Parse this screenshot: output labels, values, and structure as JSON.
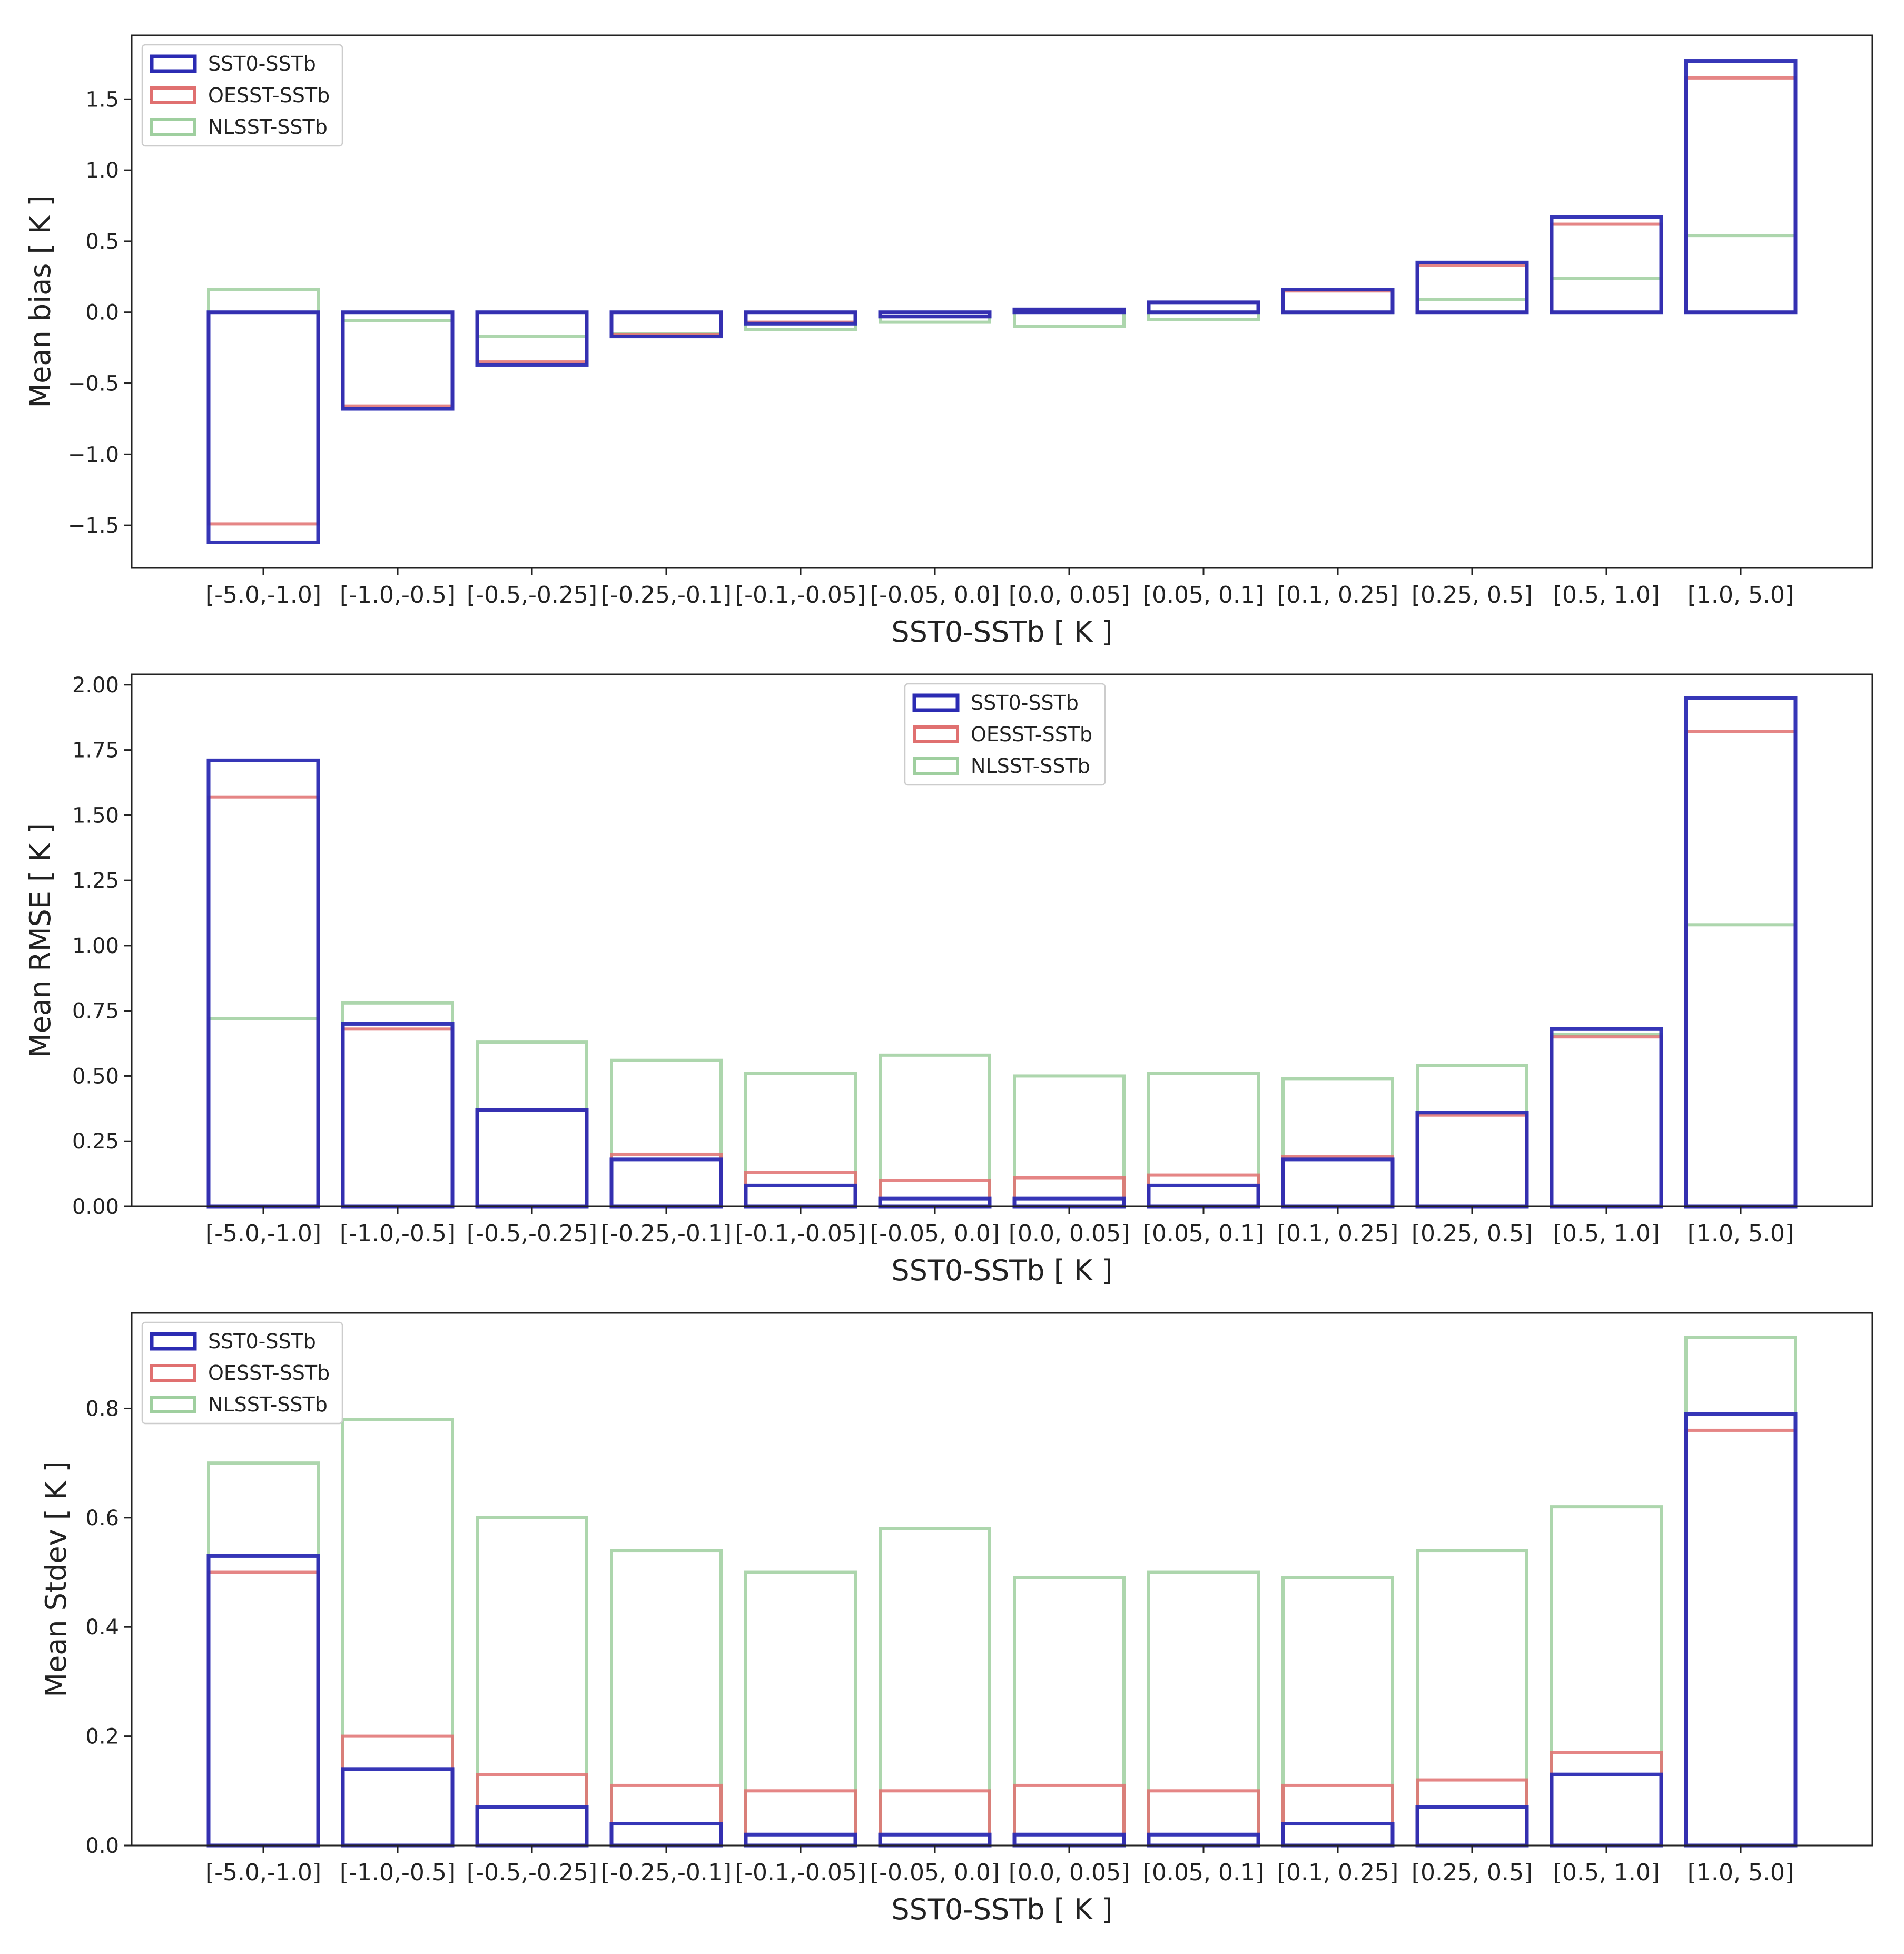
{
  "colors": {
    "SST0-SSTb": "#2b2bb3",
    "OESST-SSTb": "#e07070",
    "NLSST-SSTb": "#9fcf9f"
  },
  "chart_data": [
    {
      "type": "bar",
      "xlabel": "SST0-SSTb [ K ]",
      "ylabel": "Mean bias [ K ]",
      "ylim": [
        -1.8,
        1.95
      ],
      "yticks": [
        -1.5,
        -1.0,
        -0.5,
        0.0,
        0.5,
        1.0,
        1.5
      ],
      "ytick_labels": [
        "−1.5",
        "−1.0",
        "−0.5",
        "0.0",
        "0.5",
        "1.0",
        "1.5"
      ],
      "legend_position": "top-left",
      "grid": false,
      "categories": [
        "[-5.0,-1.0]",
        "[-1.0,-0.5]",
        "[-0.5,-0.25]",
        "[-0.25,-0.1]",
        "[-0.1,-0.05]",
        "[-0.05, 0.0]",
        "[0.0, 0.05]",
        "[0.05, 0.1]",
        "[0.1, 0.25]",
        "[0.25, 0.5]",
        "[0.5, 1.0]",
        "[1.0, 5.0]"
      ],
      "series": [
        {
          "name": "SST0-SSTb",
          "values": [
            -1.62,
            -0.68,
            -0.37,
            -0.17,
            -0.08,
            -0.03,
            0.02,
            0.07,
            0.16,
            0.35,
            0.67,
            1.77
          ]
        },
        {
          "name": "OESST-SSTb",
          "values": [
            -1.49,
            -0.66,
            -0.35,
            -0.16,
            -0.07,
            -0.03,
            0.02,
            0.07,
            0.15,
            0.33,
            0.62,
            1.65
          ]
        },
        {
          "name": "NLSST-SSTb",
          "values": [
            0.16,
            -0.06,
            -0.17,
            -0.15,
            -0.12,
            -0.07,
            -0.1,
            -0.05,
            0.0,
            0.09,
            0.24,
            0.54
          ]
        }
      ]
    },
    {
      "type": "bar",
      "xlabel": "SST0-SSTb [ K ]",
      "ylabel": "Mean RMSE [ K ]",
      "ylim": [
        0.0,
        2.04
      ],
      "yticks": [
        0.0,
        0.25,
        0.5,
        0.75,
        1.0,
        1.25,
        1.5,
        1.75,
        2.0
      ],
      "ytick_labels": [
        "0.00",
        "0.25",
        "0.50",
        "0.75",
        "1.00",
        "1.25",
        "1.50",
        "1.75",
        "2.00"
      ],
      "legend_position": "top-center",
      "grid": false,
      "categories": [
        "[-5.0,-1.0]",
        "[-1.0,-0.5]",
        "[-0.5,-0.25]",
        "[-0.25,-0.1]",
        "[-0.1,-0.05]",
        "[-0.05, 0.0]",
        "[0.0, 0.05]",
        "[0.05, 0.1]",
        "[0.1, 0.25]",
        "[0.25, 0.5]",
        "[0.5, 1.0]",
        "[1.0, 5.0]"
      ],
      "series": [
        {
          "name": "SST0-SSTb",
          "values": [
            1.71,
            0.7,
            0.37,
            0.18,
            0.08,
            0.03,
            0.03,
            0.08,
            0.18,
            0.36,
            0.68,
            1.95
          ]
        },
        {
          "name": "OESST-SSTb",
          "values": [
            1.57,
            0.68,
            0.37,
            0.2,
            0.13,
            0.1,
            0.11,
            0.12,
            0.19,
            0.35,
            0.65,
            1.82
          ]
        },
        {
          "name": "NLSST-SSTb",
          "values": [
            0.72,
            0.78,
            0.63,
            0.56,
            0.51,
            0.58,
            0.5,
            0.51,
            0.49,
            0.54,
            0.66,
            1.08
          ]
        }
      ]
    },
    {
      "type": "bar",
      "xlabel": "SST0-SSTb [ K ]",
      "ylabel": "Mean Stdev [ K ]",
      "ylim": [
        0.0,
        0.975
      ],
      "yticks": [
        0.0,
        0.2,
        0.4,
        0.6,
        0.8
      ],
      "ytick_labels": [
        "0.0",
        "0.2",
        "0.4",
        "0.6",
        "0.8"
      ],
      "legend_position": "top-left",
      "grid": false,
      "categories": [
        "[-5.0,-1.0]",
        "[-1.0,-0.5]",
        "[-0.5,-0.25]",
        "[-0.25,-0.1]",
        "[-0.1,-0.05]",
        "[-0.05, 0.0]",
        "[0.0, 0.05]",
        "[0.05, 0.1]",
        "[0.1, 0.25]",
        "[0.25, 0.5]",
        "[0.5, 1.0]",
        "[1.0, 5.0]"
      ],
      "series": [
        {
          "name": "SST0-SSTb",
          "values": [
            0.53,
            0.14,
            0.07,
            0.04,
            0.02,
            0.02,
            0.02,
            0.02,
            0.04,
            0.07,
            0.13,
            0.79
          ]
        },
        {
          "name": "OESST-SSTb",
          "values": [
            0.5,
            0.2,
            0.13,
            0.11,
            0.1,
            0.1,
            0.11,
            0.1,
            0.11,
            0.12,
            0.17,
            0.76
          ]
        },
        {
          "name": "NLSST-SSTb",
          "values": [
            0.7,
            0.78,
            0.6,
            0.54,
            0.5,
            0.58,
            0.49,
            0.5,
            0.49,
            0.54,
            0.62,
            0.93
          ]
        }
      ]
    }
  ]
}
